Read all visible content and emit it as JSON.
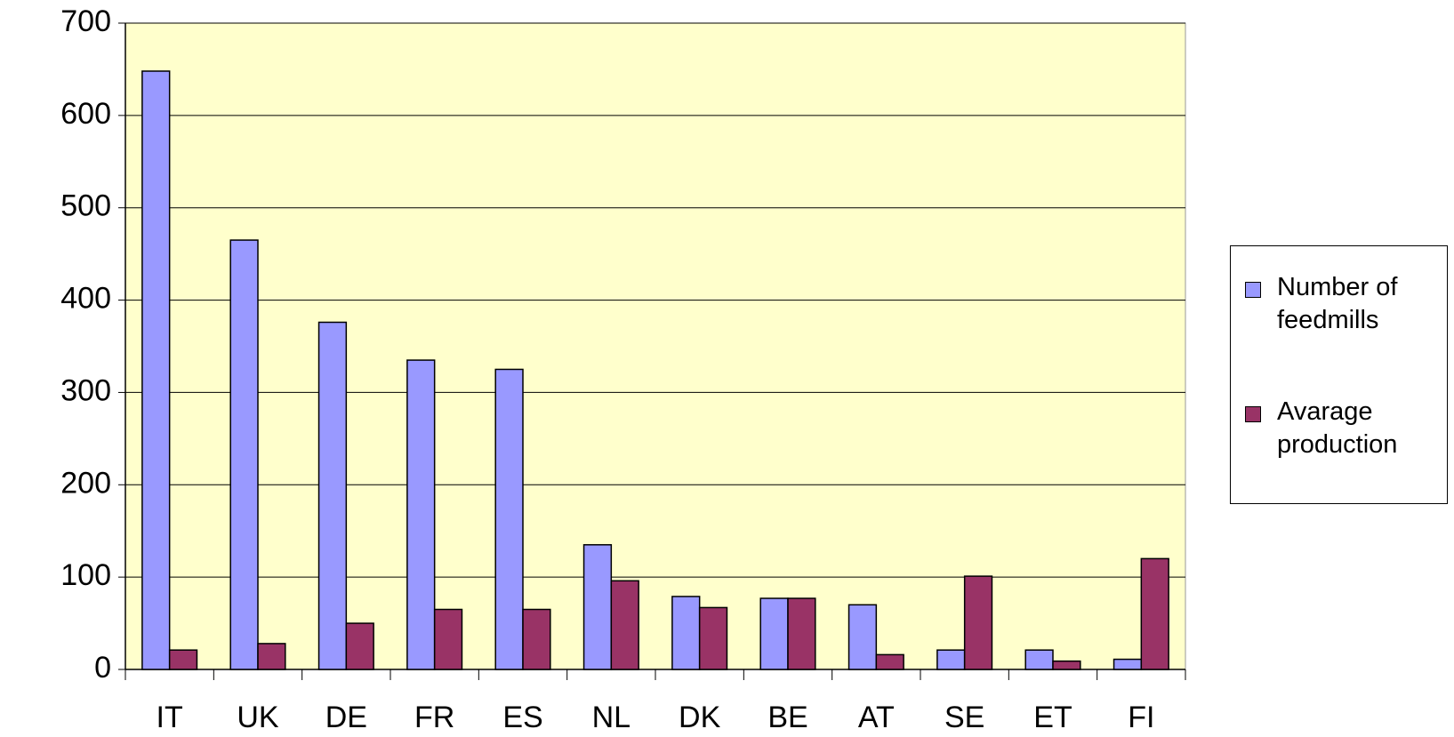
{
  "chart_data": {
    "type": "bar",
    "categories": [
      "IT",
      "UK",
      "DE",
      "FR",
      "ES",
      "NL",
      "DK",
      "BE",
      "AT",
      "SE",
      "ET",
      "FI"
    ],
    "series": [
      {
        "name": "Number of feedmills",
        "color": "#9999ff",
        "values": [
          648,
          465,
          376,
          335,
          325,
          135,
          79,
          77,
          70,
          21,
          21,
          11
        ]
      },
      {
        "name": "Avarage production",
        "color": "#993366",
        "values": [
          21,
          28,
          50,
          65,
          65,
          96,
          67,
          77,
          16,
          101,
          9,
          120
        ]
      }
    ],
    "ylim": [
      0,
      700
    ],
    "yticks": [
      0,
      100,
      200,
      300,
      400,
      500,
      600,
      700
    ],
    "grid": true,
    "legend": "right"
  }
}
